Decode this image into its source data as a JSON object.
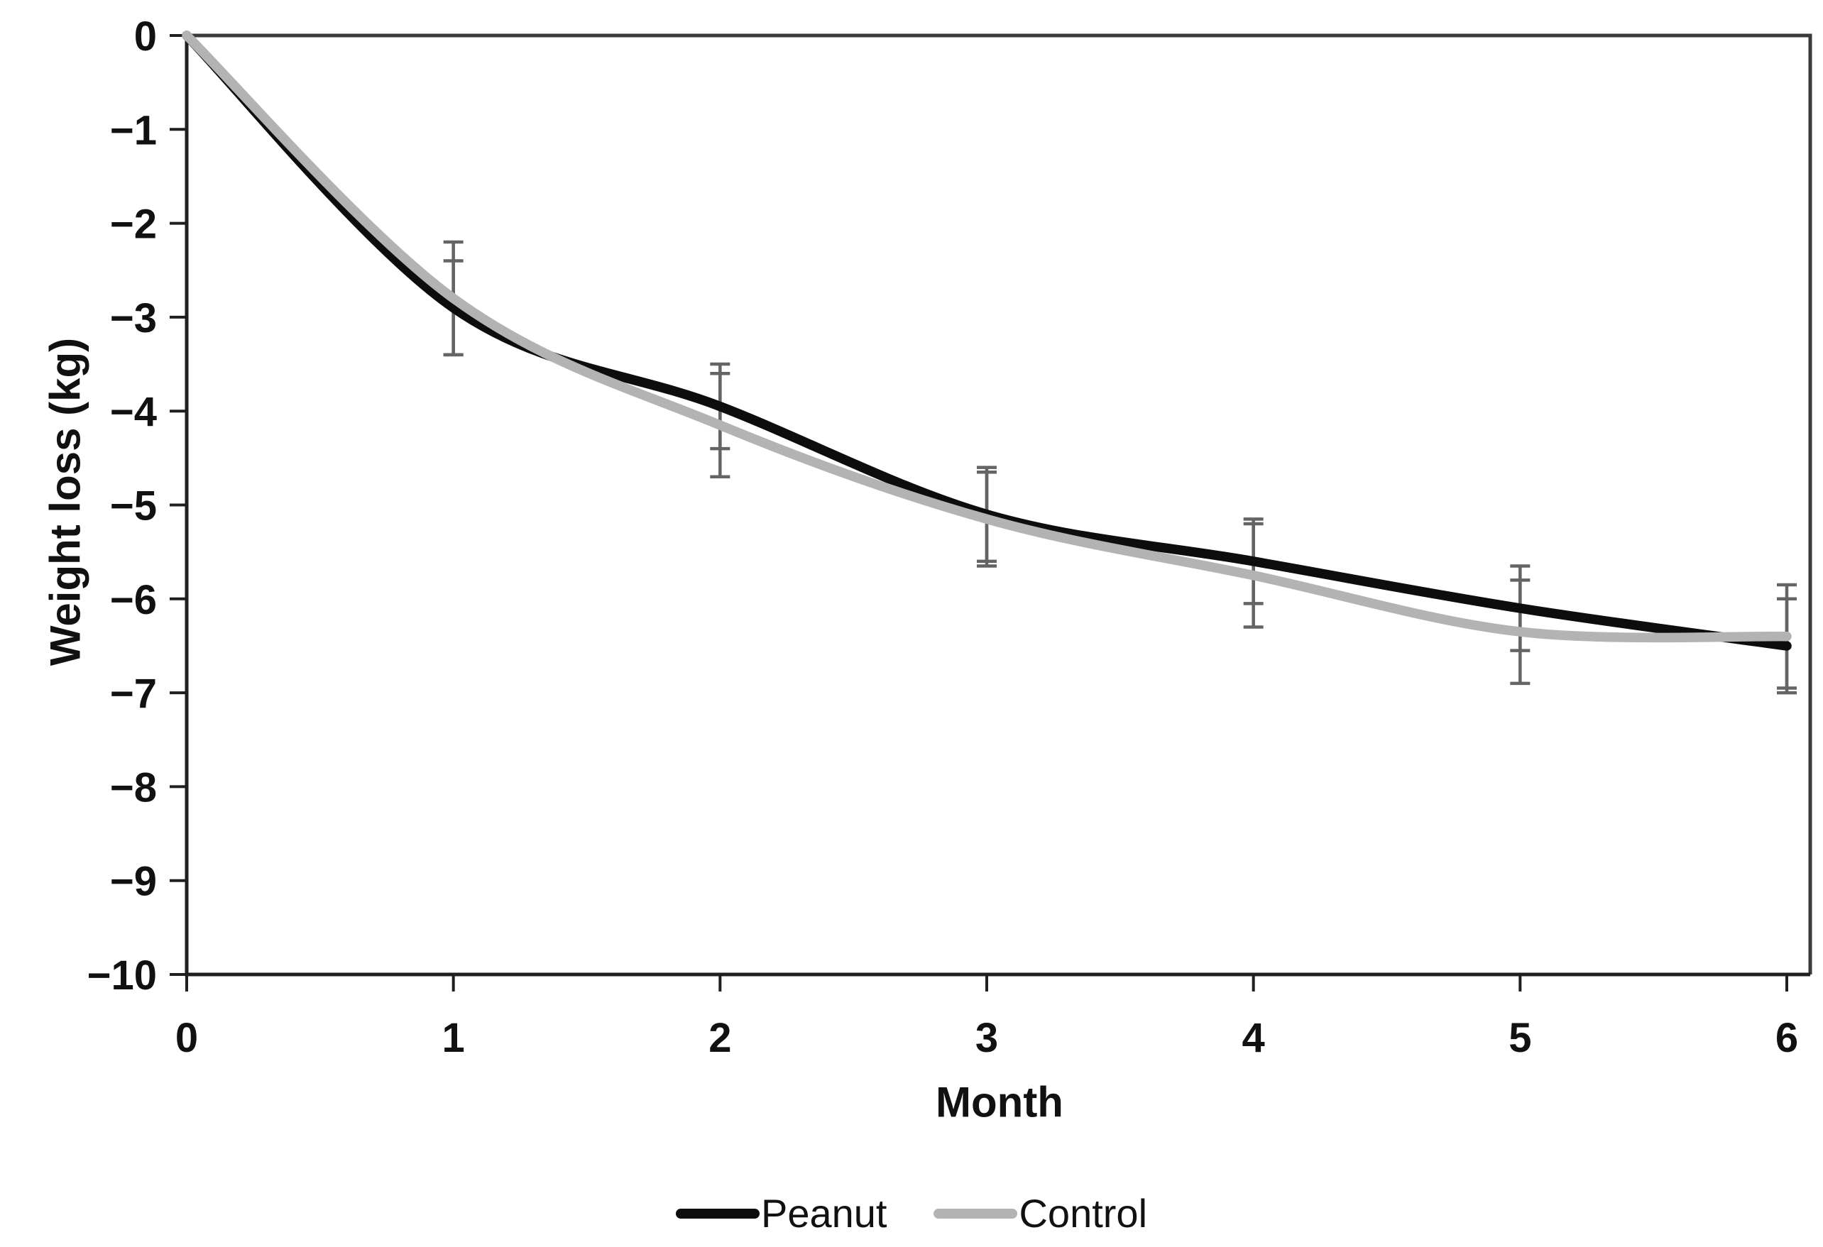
{
  "figure": {
    "background": "#ffffff"
  },
  "chart_data": {
    "type": "line",
    "title": "",
    "xlabel": "Month",
    "ylabel": "Weight loss (kg)",
    "x": [
      0,
      1,
      2,
      3,
      4,
      5,
      6
    ],
    "xtick_labels": [
      "0",
      "1",
      "2",
      "3",
      "4",
      "5",
      "6"
    ],
    "ytick_labels": [
      "0",
      "−1",
      "−2",
      "−3",
      "−4",
      "−5",
      "−6",
      "−7",
      "−8",
      "−9",
      "−10"
    ],
    "xlim": [
      0,
      6
    ],
    "ylim": [
      -10,
      0
    ],
    "grid": false,
    "legend_position": "bottom-center",
    "error_bars": true,
    "series": [
      {
        "name": "Peanut",
        "color": "#0d0d0d",
        "values": [
          0,
          -2.9,
          -3.95,
          -5.1,
          -5.6,
          -6.1,
          -6.5
        ],
        "errors": [
          0,
          0.5,
          0.45,
          0.5,
          0.45,
          0.45,
          0.5
        ]
      },
      {
        "name": "Control",
        "color": "#b3b3b3",
        "values": [
          0,
          -2.8,
          -4.15,
          -5.15,
          -5.75,
          -6.35,
          -6.4
        ],
        "errors": [
          0,
          0.6,
          0.55,
          0.5,
          0.55,
          0.55,
          0.55
        ]
      }
    ],
    "colors": {
      "axis": "#1f1f1f",
      "frame": "#3a3a3a",
      "error_bar": "#646464",
      "text": "#111111"
    }
  }
}
